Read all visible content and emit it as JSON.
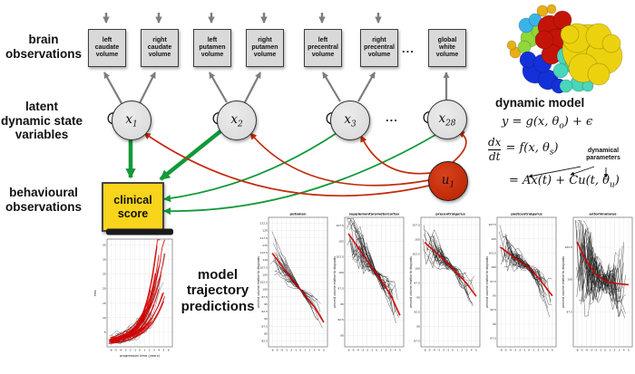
{
  "labels": {
    "brain_observations": "brain\nobservations",
    "latent_states": "latent\ndynamic state\nvariables",
    "behavioural_observations": "behavioural\nobservations",
    "model_trajectory": "model\ntrajectory\npredictions",
    "dynamic_model": "dynamic model",
    "ellipsis": "..."
  },
  "observation_boxes": [
    "left\ncaudate\nvolume",
    "right\ncaudate\nvolume",
    "left\nputamen\nvolume",
    "right\nputamen\nvolume",
    "left\nprecentral\nvolume",
    "right\nprecentral\nvolume",
    "global\nwhite\nvolume"
  ],
  "state_nodes": [
    {
      "base": "x",
      "sub": "1"
    },
    {
      "base": "x",
      "sub": "2"
    },
    {
      "base": "x",
      "sub": "3"
    },
    {
      "base": "x",
      "sub": "28"
    }
  ],
  "input_node": {
    "base": "u",
    "sub": "1"
  },
  "clinical_box": "clinical\nscore",
  "equations": {
    "eq1": {
      "pre": "y = g(x, θ",
      "sub": "o",
      "post": ") + ϵ"
    },
    "eq2": {
      "num": "dx",
      "den": "dt",
      "pre": "= f(x, θ",
      "sub": "s",
      "post": ")"
    },
    "eq3": {
      "pre": "= Ax(t) + Cu(t, θ",
      "sub": "u",
      "post": ")"
    },
    "annotation": "dynamical\nparameters"
  },
  "colors": {
    "arrow_gray": "#7d7d7d",
    "green": "#12993a",
    "red": "#c22c0e",
    "input_fill": "#c32605",
    "clinical_fill": "#f9d41d",
    "trend_red": "#d40000",
    "spaghetti": "#1a1a1a"
  },
  "chart_data": [
    {
      "id": "tms",
      "type": "line",
      "title": "",
      "xlabel": "progression time (years)",
      "ylabel": "tms",
      "xlim": [
        -6.8,
        6.8
      ],
      "ylim": [
        0,
        37
      ],
      "xticks": [
        -6,
        -5,
        -4,
        -3,
        -2,
        -1,
        0,
        1,
        2,
        3,
        4,
        5,
        6
      ],
      "yticks": [
        5,
        10,
        15,
        20,
        25,
        30,
        35
      ],
      "trend": [
        [
          -6,
          2.2
        ],
        [
          -5,
          2.6
        ],
        [
          -4,
          3.1
        ],
        [
          -3,
          3.8
        ],
        [
          -2,
          4.6
        ],
        [
          -1,
          5.6
        ],
        [
          0,
          7
        ],
        [
          1,
          8.8
        ],
        [
          2,
          11
        ],
        [
          3,
          14
        ],
        [
          4,
          18.5
        ],
        [
          5,
          24
        ],
        [
          6,
          31
        ]
      ],
      "style": {
        "kind": "rise",
        "n_model": 32,
        "n_subjects": 26,
        "jitter": 1.6,
        "seed": 11
      }
    },
    {
      "id": "putamen",
      "type": "line",
      "title": "putamen",
      "xlabel": "",
      "ylabel": "percent volume relative to diagnosis",
      "xlim": [
        -6.8,
        5.8
      ],
      "ylim": [
        80.5,
        124.5
      ],
      "xticks": [
        -6,
        -5,
        -4,
        -3,
        -2,
        -1,
        0,
        1,
        2,
        3,
        4,
        5
      ],
      "yticks": [
        82.5,
        85,
        87.5,
        90,
        92.5,
        95,
        97.5,
        100,
        102.5,
        105,
        107.5,
        110,
        112.5,
        115,
        117.5,
        120,
        122.5
      ],
      "trend": [
        [
          -6,
          112.3
        ],
        [
          -3,
          106
        ],
        [
          0,
          100
        ],
        [
          3,
          94
        ],
        [
          5,
          88.8
        ]
      ],
      "style": {
        "kind": "decline",
        "n_subjects": 30,
        "jitter": 1.2,
        "seed": 22
      }
    },
    {
      "id": "supplementarymotorcortex",
      "type": "line",
      "title": "supplementarymotorcortex",
      "xlabel": "",
      "ylabel": "percent volume relative to diagnosis",
      "xlim": [
        -6.8,
        5.8
      ],
      "ylim": [
        88.2,
        108.8
      ],
      "xticks": [
        -6,
        -5,
        -4,
        -3,
        -2,
        -1,
        0,
        1,
        2,
        3,
        4,
        5
      ],
      "yticks": [
        90,
        92.5,
        95,
        97.5,
        100,
        102.5,
        105,
        107.5
      ],
      "trend": [
        [
          -6,
          106.2
        ],
        [
          -3,
          103
        ],
        [
          0,
          99.8
        ],
        [
          3,
          96.5
        ],
        [
          5,
          93.2
        ]
      ],
      "style": {
        "kind": "decline",
        "n_subjects": 32,
        "jitter": 1.8,
        "seed": 33
      }
    },
    {
      "id": "precentralgyrus",
      "type": "line",
      "title": "precentralgyrus",
      "xlabel": "",
      "ylabel": "percent volume relative to diagnosis",
      "xlim": [
        -6.8,
        5.8
      ],
      "ylim": [
        86.5,
        108.8
      ],
      "xticks": [
        -6,
        -5,
        -4,
        -3,
        -2,
        -1,
        0,
        1,
        2,
        3,
        4,
        5
      ],
      "yticks": [
        87.5,
        90,
        92.5,
        95,
        97.5,
        100,
        102.5,
        105,
        107.5
      ],
      "trend": [
        [
          -6,
          104.5
        ],
        [
          -3,
          102.3
        ],
        [
          0,
          100
        ],
        [
          3,
          97.4
        ],
        [
          5,
          95.2
        ]
      ],
      "style": {
        "kind": "decline",
        "n_subjects": 30,
        "jitter": 1.6,
        "seed": 44
      }
    },
    {
      "id": "postcentralgyrus",
      "type": "line",
      "title": "postcentralgyrus",
      "xlabel": "",
      "ylabel": "percent volume relative to diagnosis",
      "xlim": [
        -6.8,
        5.8
      ],
      "ylim": [
        86,
        108.8
      ],
      "xticks": [
        -6,
        -5,
        -4,
        -3,
        -2,
        -1,
        0,
        1,
        2,
        3,
        4,
        5
      ],
      "yticks": [
        87.5,
        90,
        92.5,
        95,
        97.5,
        100,
        102.5,
        105,
        107.5
      ],
      "trend": [
        [
          -6,
          103.5
        ],
        [
          -2,
          101
        ],
        [
          0,
          100
        ],
        [
          2,
          98.2
        ],
        [
          5,
          95
        ]
      ],
      "style": {
        "kind": "decline",
        "n_subjects": 32,
        "jitter": 1.8,
        "seed": 55
      }
    },
    {
      "id": "entorhinalarea",
      "type": "line",
      "title": "entorhinalarea",
      "xlabel": "",
      "ylabel": "percent volume relative to diagnosis",
      "xlim": [
        -6.8,
        5.8
      ],
      "ylim": [
        94.8,
        104.8
      ],
      "xticks": [
        -6,
        -5,
        -4,
        -3,
        -2,
        -1,
        0,
        1,
        2,
        3,
        4,
        5
      ],
      "yticks": [
        97.5,
        100,
        102.5
      ],
      "trend": [
        [
          -6,
          102.9
        ],
        [
          -4,
          101.4
        ],
        [
          -2,
          100.4
        ],
        [
          0,
          99.9
        ],
        [
          2,
          99.7
        ],
        [
          5,
          99.6
        ]
      ],
      "style": {
        "kind": "decline",
        "n_subjects": 34,
        "jitter": 2.8,
        "seed": 66
      }
    }
  ]
}
